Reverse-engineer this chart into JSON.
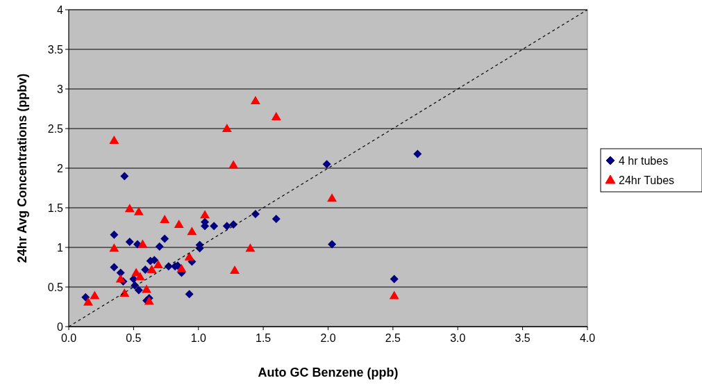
{
  "chart_data": {
    "type": "scatter",
    "xlabel": "Auto GC Benzene (ppb)",
    "ylabel": "24hr Avg Concentrations (ppbv)",
    "xlim": [
      0,
      4
    ],
    "xticks": [
      {
        "value": 0,
        "label": "0.0"
      },
      {
        "value": 0.5,
        "label": "0.5"
      },
      {
        "value": 1,
        "label": "1.0"
      },
      {
        "value": 1.5,
        "label": "1.5"
      },
      {
        "value": 2,
        "label": "2.0"
      },
      {
        "value": 2.5,
        "label": "2.5"
      },
      {
        "value": 3,
        "label": "3.0"
      },
      {
        "value": 3.5,
        "label": "3.5"
      },
      {
        "value": 4,
        "label": "4.0"
      }
    ],
    "ylim": [
      0,
      4
    ],
    "yticks": [
      0,
      0.5,
      1,
      1.5,
      2,
      2.5,
      3,
      3.5,
      4
    ],
    "grid": "y",
    "legend": "right",
    "series": [
      {
        "name": "4 hr tubes",
        "color": "#000080",
        "marker": "diamond",
        "x": [
          0.13,
          0.35,
          0.35,
          0.4,
          0.42,
          0.43,
          0.47,
          0.5,
          0.51,
          0.53,
          0.54,
          0.59,
          0.6,
          0.62,
          0.63,
          0.66,
          0.7,
          0.74,
          0.77,
          0.82,
          0.84,
          0.87,
          0.93,
          0.95,
          1.01,
          1.01,
          1.05,
          1.05,
          1.12,
          1.22,
          1.27,
          1.44,
          1.6,
          1.99,
          2.03,
          2.51,
          2.69
        ],
        "values": [
          0.37,
          0.75,
          1.16,
          0.68,
          0.57,
          1.9,
          1.07,
          0.6,
          0.52,
          1.04,
          0.46,
          0.72,
          0.33,
          0.36,
          0.83,
          0.84,
          1.01,
          1.11,
          0.76,
          0.76,
          0.77,
          0.68,
          0.41,
          0.82,
          1.03,
          0.99,
          1.32,
          1.27,
          1.27,
          1.27,
          1.29,
          1.42,
          1.36,
          2.05,
          1.04,
          0.6,
          2.18
        ]
      },
      {
        "name": "24hr Tubes",
        "color": "#ff0000",
        "marker": "triangle",
        "x": [
          0.15,
          0.2,
          0.35,
          0.35,
          0.4,
          0.43,
          0.47,
          0.54,
          0.52,
          0.55,
          0.57,
          0.6,
          0.62,
          0.64,
          0.69,
          0.74,
          0.85,
          0.87,
          0.93,
          0.95,
          1.05,
          1.22,
          1.27,
          1.28,
          1.4,
          1.44,
          1.6,
          2.03,
          2.51
        ],
        "values": [
          0.31,
          0.39,
          2.35,
          0.99,
          0.6,
          0.42,
          1.49,
          1.45,
          0.68,
          0.63,
          1.04,
          0.47,
          0.32,
          0.72,
          0.78,
          1.35,
          1.29,
          0.73,
          0.88,
          1.2,
          1.41,
          2.5,
          2.04,
          0.71,
          0.99,
          2.85,
          2.65,
          1.62,
          0.39
        ]
      },
      {
        "type": "line",
        "color": "#000000",
        "marker": "none",
        "line_style": "dashed",
        "x": [
          0,
          4
        ],
        "values": [
          0,
          4
        ]
      }
    ]
  }
}
